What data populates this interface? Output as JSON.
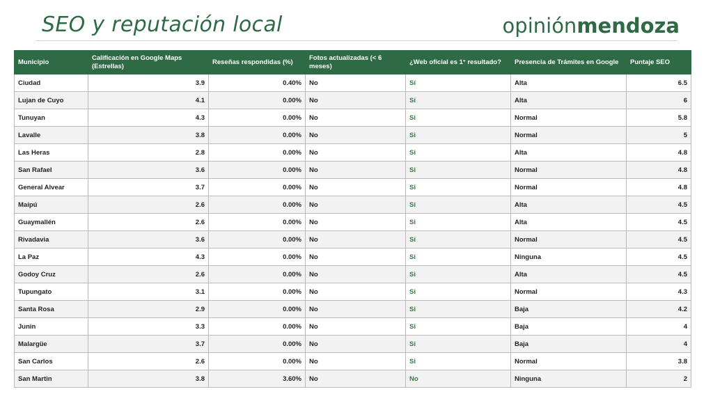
{
  "header": {
    "title": "SEO y reputación local",
    "brand_light": "opinión",
    "brand_bold": "mendoza"
  },
  "table": {
    "columns": [
      "Municipio",
      "Calificación en Google Maps (Estrellas)",
      "Reseñas respondidas (%)",
      "Fotos actualizadas (< 6 meses)",
      "¿Web oficial es 1° resultado?",
      "Presencia de Trámites en Google",
      "Puntaje SEO"
    ],
    "rows": [
      [
        "Ciudad",
        "3.9",
        "0.40%",
        "No",
        "Sí",
        "Alta",
        "6.5"
      ],
      [
        "Lujan de Cuyo",
        "4.1",
        "0.00%",
        "No",
        "Si",
        "Alta",
        "6"
      ],
      [
        "Tunuyan",
        "4.3",
        "0.00%",
        "No",
        "Si",
        "Normal",
        "5.8"
      ],
      [
        "Lavalle",
        "3.8",
        "0.00%",
        "No",
        "Si",
        "Normal",
        "5"
      ],
      [
        "Las Heras",
        "2.8",
        "0.00%",
        "No",
        "Si",
        "Alta",
        "4.8"
      ],
      [
        "San Rafael",
        "3.6",
        "0.00%",
        "No",
        "Si",
        "Normal",
        "4.8"
      ],
      [
        "General Alvear",
        "3.7",
        "0.00%",
        "No",
        "Si",
        "Normal",
        "4.8"
      ],
      [
        "Maipú",
        "2.6",
        "0.00%",
        "No",
        "Si",
        "Alta",
        "4.5"
      ],
      [
        "Guaymallén",
        "2.6",
        "0.00%",
        "No",
        "Si",
        "Alta",
        "4.5"
      ],
      [
        "Rivadavia",
        "3.6",
        "0.00%",
        "No",
        "Si",
        "Normal",
        "4.5"
      ],
      [
        "La Paz",
        "4.3",
        "0.00%",
        "No",
        "Si",
        "Ninguna",
        "4.5"
      ],
      [
        "Godoy Cruz",
        "2.6",
        "0.00%",
        "No",
        "Si",
        "Alta",
        "4.5"
      ],
      [
        "Tupungato",
        "3.1",
        "0.00%",
        "No",
        "Si",
        "Normal",
        "4.3"
      ],
      [
        "Santa Rosa",
        "2.9",
        "0.00%",
        "No",
        "Si",
        "Baja",
        "4.2"
      ],
      [
        "Junin",
        "3.3",
        "0.00%",
        "No",
        "Si",
        "Baja",
        "4"
      ],
      [
        "Malargüe",
        "3.7",
        "0.00%",
        "No",
        "Si",
        "Baja",
        "4"
      ],
      [
        "San Carlos",
        "2.6",
        "0.00%",
        "No",
        "Si",
        "Normal",
        "3.8"
      ],
      [
        "San Martin",
        "3.8",
        "3.60%",
        "No",
        "No",
        "Ninguna",
        "2"
      ]
    ]
  },
  "colors": {
    "accent": "#2e6b45",
    "web_yes": "#2e7d3a",
    "row_alt": "#f2f2f2"
  }
}
